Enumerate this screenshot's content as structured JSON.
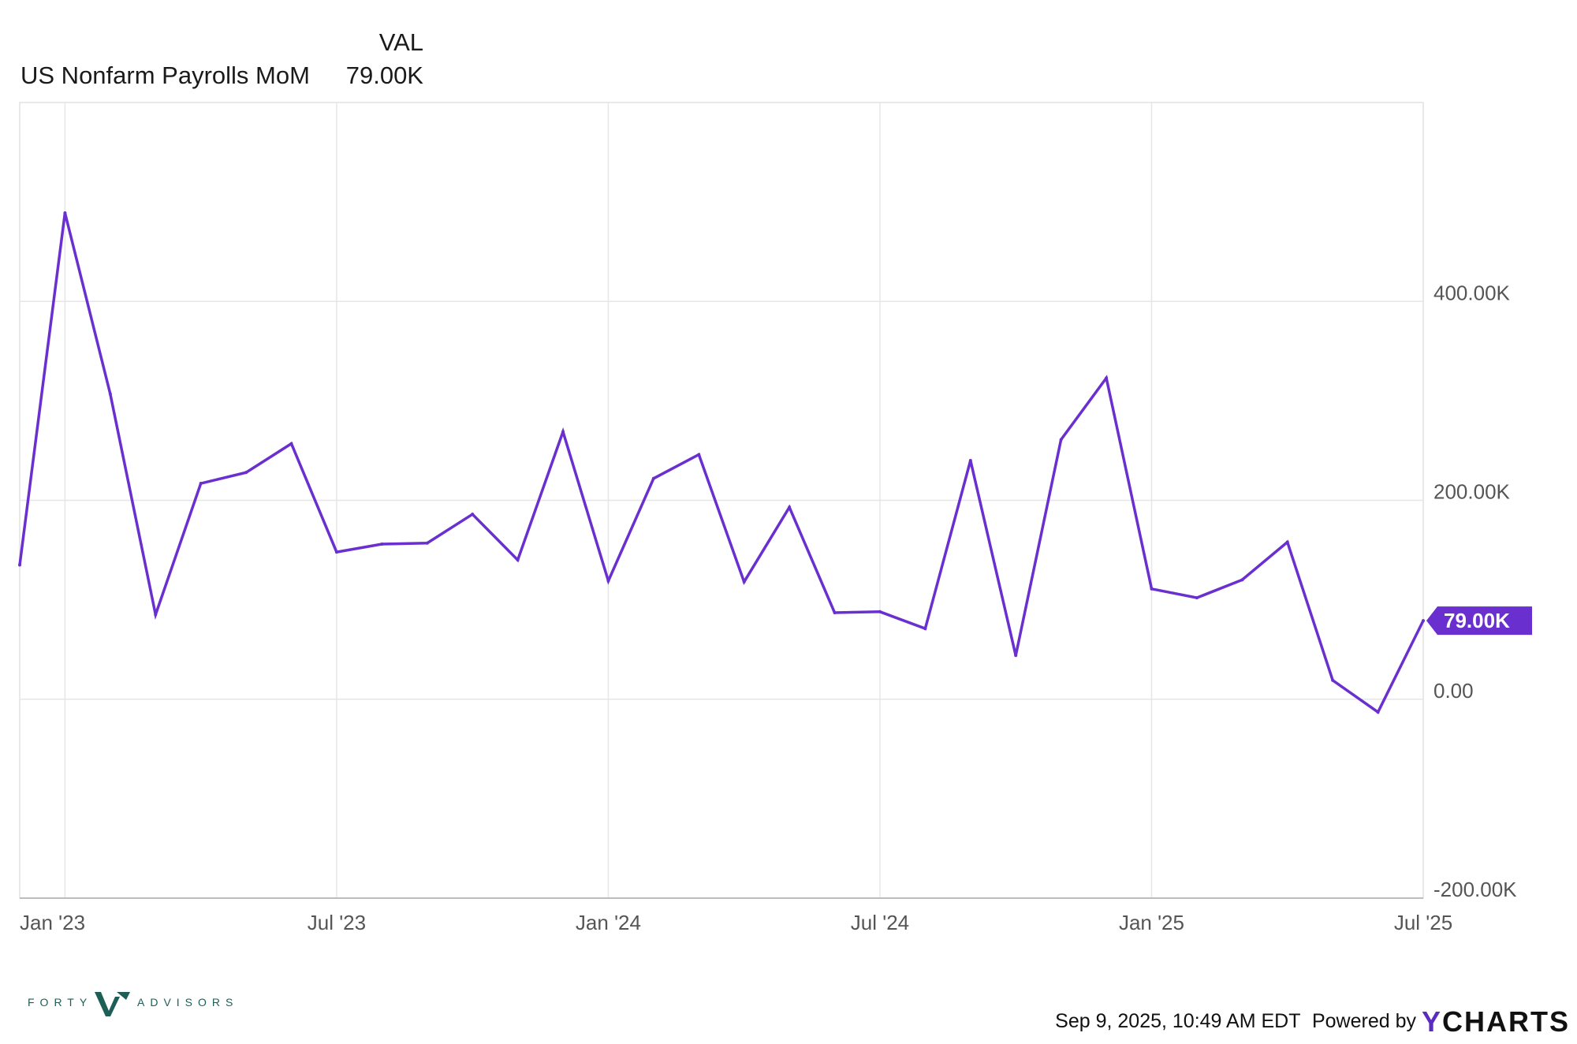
{
  "legend": {
    "header": "VAL",
    "series_name": "US Nonfarm Payrolls MoM",
    "series_value": "79.00K"
  },
  "footer": {
    "timestamp": "Sep 9, 2025, 10:49 AM EDT",
    "powered_by": "Powered by",
    "brand_y": "Y",
    "brand_rest": "CHARTS"
  },
  "logo": {
    "left_text": "FORTY",
    "right_text": "ADVISORS"
  },
  "colors": {
    "series": "#6a2fcf",
    "grid": "#e6e6e6",
    "axis": "#cccccc",
    "brand_y": "#5b2bbf",
    "logo": "#1d5f57"
  },
  "chart_data": {
    "type": "line",
    "x_unit": "month",
    "x": [
      "2022-12",
      "2023-01",
      "2023-02",
      "2023-03",
      "2023-04",
      "2023-05",
      "2023-06",
      "2023-07",
      "2023-08",
      "2023-09",
      "2023-10",
      "2023-11",
      "2023-12",
      "2024-01",
      "2024-02",
      "2024-03",
      "2024-04",
      "2024-05",
      "2024-06",
      "2024-07",
      "2024-08",
      "2024-09",
      "2024-10",
      "2024-11",
      "2024-12",
      "2025-01",
      "2025-02",
      "2025-03",
      "2025-04",
      "2025-05",
      "2025-06",
      "2025-07"
    ],
    "series": [
      {
        "name": "US Nonfarm Payrolls MoM",
        "values": [
          135,
          489,
          307,
          85,
          217,
          228,
          257,
          148,
          156,
          157,
          186,
          140,
          269,
          119,
          222,
          246,
          118,
          193,
          87,
          88,
          71,
          240,
          44,
          261,
          323,
          111,
          102,
          120,
          158,
          19,
          -13,
          79
        ]
      }
    ],
    "y_unit": "K",
    "ylim": [
      -200,
      600
    ],
    "yticks": [
      -200,
      0,
      200,
      400
    ],
    "ytick_labels": [
      "-200.00K",
      "0.00",
      "200.00K",
      "400.00K"
    ],
    "xtick_dates": [
      "2023-01",
      "2023-07",
      "2024-01",
      "2024-07",
      "2025-01",
      "2025-07"
    ],
    "xtick_labels": [
      "Jan '23",
      "Jul '23",
      "Jan '24",
      "Jul '24",
      "Jan '25",
      "Jul '25"
    ],
    "last_value_label": "79.00K",
    "grid": true,
    "legend_position": "top-left"
  }
}
